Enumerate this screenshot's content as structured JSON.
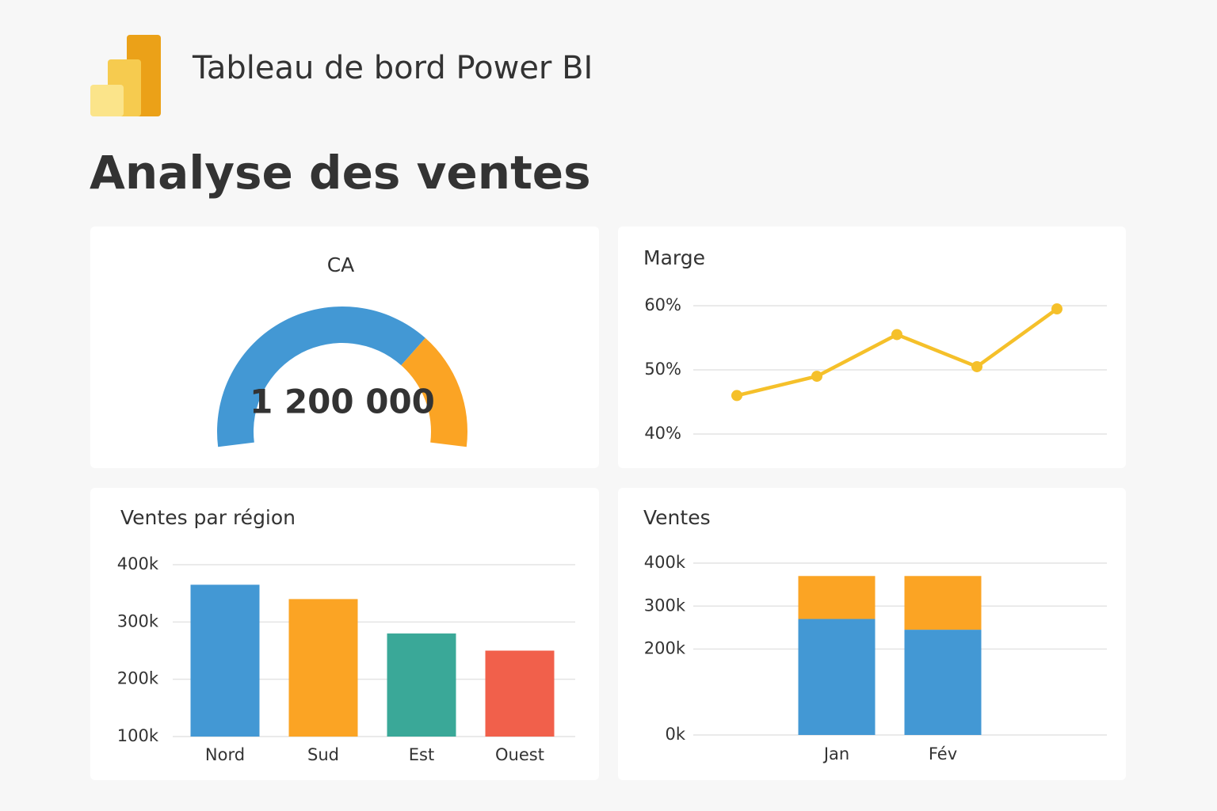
{
  "header": {
    "title": "Tableau de bord Power BI"
  },
  "heading": "Analyse des ventes",
  "chart_data": [
    {
      "type": "gauge",
      "title": "CA",
      "value": 1200000,
      "value_label": "1 200 000",
      "range": [
        0,
        1680000
      ],
      "colors": [
        "#4398d4",
        "#fba424"
      ]
    },
    {
      "type": "line",
      "title": "Marge",
      "categories": [
        null,
        null,
        null,
        null,
        null
      ],
      "values": [
        46,
        49,
        55.5,
        50.5,
        59.5
      ],
      "color": "#f5c02a",
      "ylim": [
        40,
        60
      ],
      "yticks": [
        {
          "value": 40,
          "label": "40%"
        },
        {
          "value": 50,
          "label": "50%"
        },
        {
          "value": 60,
          "label": "60%"
        }
      ],
      "grid": true
    },
    {
      "type": "bar",
      "title": "Ventes par région",
      "categories": [
        "Nord",
        "Sud",
        "Est",
        "Ouest"
      ],
      "values": [
        365000,
        340000,
        280000,
        250000
      ],
      "colors": [
        "#4398d4",
        "#fba424",
        "#3aa898",
        "#f1604b"
      ],
      "ylim": [
        100000,
        400000
      ],
      "yticks": [
        {
          "value": 100000,
          "label": "100k"
        },
        {
          "value": 200000,
          "label": "200k"
        },
        {
          "value": 300000,
          "label": "300k"
        },
        {
          "value": 400000,
          "label": "400k"
        }
      ],
      "grid": true
    },
    {
      "type": "stacked-bar",
      "title": "Ventes",
      "categories": [
        "Jan",
        "Fév"
      ],
      "series": [
        {
          "color": "#4398d4",
          "values": [
            270000,
            245000
          ]
        },
        {
          "color": "#fba424",
          "values": [
            100000,
            125000
          ]
        }
      ],
      "ylim": [
        0,
        400000
      ],
      "yticks": [
        {
          "value": 0,
          "label": "0k"
        },
        {
          "value": 200000,
          "label": "200k"
        },
        {
          "value": 300000,
          "label": "300k"
        },
        {
          "value": 400000,
          "label": "400k"
        }
      ],
      "grid": true
    }
  ]
}
